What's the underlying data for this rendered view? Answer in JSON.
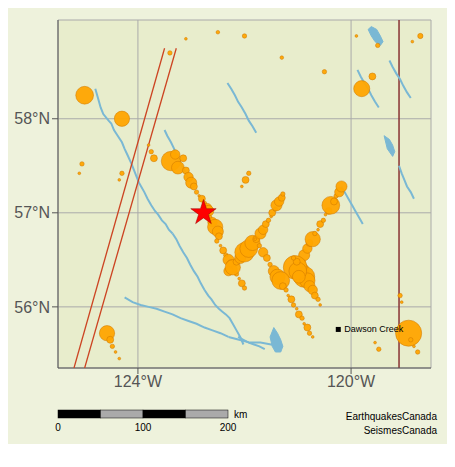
{
  "chart_data": {
    "type": "scatter",
    "xlim": [
      -125.5,
      -118.5
    ],
    "ylim": [
      55.35,
      59.05
    ],
    "xticks": [
      {
        "value": -124,
        "label": "124°W"
      },
      {
        "value": -120,
        "label": "120°W"
      }
    ],
    "yticks": [
      {
        "value": 56,
        "label": "56°N"
      },
      {
        "value": 57,
        "label": "57°N"
      },
      {
        "value": 58,
        "label": "58°N"
      }
    ],
    "grid": true,
    "background": "#eef2dc",
    "map_color": "#e8edcc",
    "grid_color": "#aaaaaa",
    "border_color": "#555555",
    "water_color": "#7ab8d4",
    "color": "#FFA500",
    "edge_color": "#cc7700",
    "earthquakes": [
      {
        "lon": -125.0,
        "lat": 58.25,
        "mag": 3.8
      },
      {
        "lon": -124.3,
        "lat": 58.0,
        "mag": 3.5
      },
      {
        "lon": -123.4,
        "lat": 58.7,
        "mag": 2.2
      },
      {
        "lon": -123.1,
        "lat": 58.85,
        "mag": 2.0
      },
      {
        "lon": -122.5,
        "lat": 58.92,
        "mag": 2.1
      },
      {
        "lon": -122.0,
        "lat": 58.88,
        "mag": 2.2
      },
      {
        "lon": -121.3,
        "lat": 58.65,
        "mag": 2.1
      },
      {
        "lon": -120.5,
        "lat": 58.5,
        "mag": 2.2
      },
      {
        "lon": -119.9,
        "lat": 58.88,
        "mag": 2.0
      },
      {
        "lon": -119.5,
        "lat": 58.78,
        "mag": 2.2
      },
      {
        "lon": -118.85,
        "lat": 58.82,
        "mag": 2.0
      },
      {
        "lon": -118.7,
        "lat": 58.88,
        "mag": 2.3
      },
      {
        "lon": -119.8,
        "lat": 58.32,
        "mag": 3.6
      },
      {
        "lon": -119.6,
        "lat": 58.45,
        "mag": 2.5
      },
      {
        "lon": -123.38,
        "lat": 57.55,
        "mag": 4.0
      },
      {
        "lon": -123.25,
        "lat": 57.48,
        "mag": 3.2
      },
      {
        "lon": -123.3,
        "lat": 57.62,
        "mag": 2.8
      },
      {
        "lon": -123.15,
        "lat": 57.58,
        "mag": 2.5
      },
      {
        "lon": -123.1,
        "lat": 57.45,
        "mag": 2.5
      },
      {
        "lon": -123.05,
        "lat": 57.38,
        "mag": 2.8
      },
      {
        "lon": -123.0,
        "lat": 57.32,
        "mag": 3.0
      },
      {
        "lon": -122.95,
        "lat": 57.28,
        "mag": 2.5
      },
      {
        "lon": -122.9,
        "lat": 57.22,
        "mag": 2.2
      },
      {
        "lon": -122.85,
        "lat": 57.18,
        "mag": 2.0
      },
      {
        "lon": -122.8,
        "lat": 57.15,
        "mag": 2.5
      },
      {
        "lon": -122.75,
        "lat": 57.1,
        "mag": 2.2
      },
      {
        "lon": -122.7,
        "lat": 57.05,
        "mag": 2.8
      },
      {
        "lon": -122.68,
        "lat": 57.02,
        "mag": 3.0
      },
      {
        "lon": -122.72,
        "lat": 56.98,
        "mag": 2.5
      },
      {
        "lon": -122.65,
        "lat": 56.95,
        "mag": 2.2
      },
      {
        "lon": -122.6,
        "lat": 56.9,
        "mag": 2.8
      },
      {
        "lon": -122.55,
        "lat": 56.85,
        "mag": 3.5
      },
      {
        "lon": -122.5,
        "lat": 56.8,
        "mag": 3.0
      },
      {
        "lon": -122.48,
        "lat": 56.75,
        "mag": 2.5
      },
      {
        "lon": -122.52,
        "lat": 56.7,
        "mag": 2.2
      },
      {
        "lon": -122.45,
        "lat": 56.65,
        "mag": 2.0
      },
      {
        "lon": -122.4,
        "lat": 56.6,
        "mag": 2.5
      },
      {
        "lon": -122.35,
        "lat": 56.55,
        "mag": 2.2
      },
      {
        "lon": -122.3,
        "lat": 56.5,
        "mag": 3.0
      },
      {
        "lon": -122.25,
        "lat": 56.45,
        "mag": 2.8
      },
      {
        "lon": -122.2,
        "lat": 56.4,
        "mag": 2.5
      },
      {
        "lon": -122.15,
        "lat": 56.35,
        "mag": 2.2
      },
      {
        "lon": -122.1,
        "lat": 56.3,
        "mag": 2.0
      },
      {
        "lon": -122.05,
        "lat": 56.25,
        "mag": 2.5
      },
      {
        "lon": -122.0,
        "lat": 56.2,
        "mag": 2.2
      },
      {
        "lon": -122.3,
        "lat": 56.38,
        "mag": 2.8
      },
      {
        "lon": -122.22,
        "lat": 56.42,
        "mag": 3.5
      },
      {
        "lon": -122.15,
        "lat": 56.48,
        "mag": 2.5
      },
      {
        "lon": -122.08,
        "lat": 56.52,
        "mag": 3.0
      },
      {
        "lon": -122.0,
        "lat": 56.58,
        "mag": 4.0
      },
      {
        "lon": -121.92,
        "lat": 56.62,
        "mag": 3.8
      },
      {
        "lon": -121.85,
        "lat": 56.68,
        "mag": 3.5
      },
      {
        "lon": -121.78,
        "lat": 56.72,
        "mag": 2.5
      },
      {
        "lon": -121.7,
        "lat": 56.78,
        "mag": 3.0
      },
      {
        "lon": -121.65,
        "lat": 56.82,
        "mag": 2.8
      },
      {
        "lon": -121.6,
        "lat": 56.88,
        "mag": 2.5
      },
      {
        "lon": -121.55,
        "lat": 56.92,
        "mag": 2.2
      },
      {
        "lon": -121.5,
        "lat": 56.96,
        "mag": 2.0
      },
      {
        "lon": -121.48,
        "lat": 57.0,
        "mag": 2.5
      },
      {
        "lon": -121.42,
        "lat": 57.04,
        "mag": 2.2
      },
      {
        "lon": -121.4,
        "lat": 57.08,
        "mag": 3.0
      },
      {
        "lon": -121.35,
        "lat": 57.12,
        "mag": 2.8
      },
      {
        "lon": -121.3,
        "lat": 57.16,
        "mag": 2.5
      },
      {
        "lon": -121.28,
        "lat": 57.2,
        "mag": 2.2
      },
      {
        "lon": -120.95,
        "lat": 56.38,
        "mag": 3.8
      },
      {
        "lon": -120.88,
        "lat": 56.32,
        "mag": 4.2
      },
      {
        "lon": -120.82,
        "lat": 56.28,
        "mag": 3.5
      },
      {
        "lon": -120.78,
        "lat": 56.22,
        "mag": 3.0
      },
      {
        "lon": -120.72,
        "lat": 56.18,
        "mag": 2.8
      },
      {
        "lon": -120.68,
        "lat": 56.12,
        "mag": 2.5
      },
      {
        "lon": -120.62,
        "lat": 56.08,
        "mag": 2.2
      },
      {
        "lon": -120.58,
        "lat": 56.02,
        "mag": 2.0
      },
      {
        "lon": -120.92,
        "lat": 56.48,
        "mag": 2.5
      },
      {
        "lon": -120.88,
        "lat": 56.55,
        "mag": 3.0
      },
      {
        "lon": -120.82,
        "lat": 56.62,
        "mag": 2.8
      },
      {
        "lon": -120.78,
        "lat": 56.68,
        "mag": 2.5
      },
      {
        "lon": -120.72,
        "lat": 56.72,
        "mag": 3.5
      },
      {
        "lon": -120.68,
        "lat": 56.78,
        "mag": 2.2
      },
      {
        "lon": -120.62,
        "lat": 56.82,
        "mag": 2.0
      },
      {
        "lon": -120.58,
        "lat": 56.88,
        "mag": 2.5
      },
      {
        "lon": -120.52,
        "lat": 56.92,
        "mag": 2.2
      },
      {
        "lon": -120.48,
        "lat": 56.98,
        "mag": 2.0
      },
      {
        "lon": -120.42,
        "lat": 57.02,
        "mag": 2.5
      },
      {
        "lon": -120.38,
        "lat": 57.08,
        "mag": 3.8
      },
      {
        "lon": -120.32,
        "lat": 57.12,
        "mag": 2.5
      },
      {
        "lon": -120.28,
        "lat": 57.18,
        "mag": 2.2
      },
      {
        "lon": -120.22,
        "lat": 57.22,
        "mag": 2.8
      },
      {
        "lon": -120.18,
        "lat": 57.28,
        "mag": 3.0
      },
      {
        "lon": -121.05,
        "lat": 56.42,
        "mag": 4.5
      },
      {
        "lon": -121.0,
        "lat": 56.38,
        "mag": 3.8
      },
      {
        "lon": -120.98,
        "lat": 56.32,
        "mag": 3.2
      },
      {
        "lon": -121.02,
        "lat": 56.48,
        "mag": 2.5
      },
      {
        "lon": -121.08,
        "lat": 56.52,
        "mag": 2.2
      },
      {
        "lon": -124.35,
        "lat": 57.35,
        "mag": 2.0
      },
      {
        "lon": -124.3,
        "lat": 57.42,
        "mag": 2.2
      },
      {
        "lon": -123.8,
        "lat": 57.72,
        "mag": 2.0
      },
      {
        "lon": -123.75,
        "lat": 57.65,
        "mag": 2.2
      },
      {
        "lon": -123.7,
        "lat": 57.58,
        "mag": 2.5
      },
      {
        "lon": -121.8,
        "lat": 56.72,
        "mag": 2.0
      },
      {
        "lon": -121.72,
        "lat": 56.65,
        "mag": 2.2
      },
      {
        "lon": -121.65,
        "lat": 56.58,
        "mag": 2.8
      },
      {
        "lon": -121.58,
        "lat": 56.52,
        "mag": 2.5
      },
      {
        "lon": -121.52,
        "lat": 56.45,
        "mag": 2.2
      },
      {
        "lon": -121.45,
        "lat": 56.38,
        "mag": 3.0
      },
      {
        "lon": -121.38,
        "lat": 56.32,
        "mag": 3.5
      },
      {
        "lon": -121.32,
        "lat": 56.28,
        "mag": 3.8
      },
      {
        "lon": -121.28,
        "lat": 56.22,
        "mag": 2.5
      },
      {
        "lon": -121.22,
        "lat": 56.18,
        "mag": 2.2
      },
      {
        "lon": -121.18,
        "lat": 56.12,
        "mag": 2.0
      },
      {
        "lon": -121.12,
        "lat": 56.08,
        "mag": 2.5
      },
      {
        "lon": -121.08,
        "lat": 56.02,
        "mag": 2.2
      },
      {
        "lon": -121.02,
        "lat": 55.98,
        "mag": 2.0
      },
      {
        "lon": -120.98,
        "lat": 55.92,
        "mag": 2.5
      },
      {
        "lon": -120.92,
        "lat": 55.88,
        "mag": 2.2
      },
      {
        "lon": -120.88,
        "lat": 55.82,
        "mag": 2.0
      },
      {
        "lon": -120.82,
        "lat": 55.78,
        "mag": 2.5
      },
      {
        "lon": -120.78,
        "lat": 55.72,
        "mag": 2.2
      },
      {
        "lon": -120.72,
        "lat": 55.68,
        "mag": 2.0
      },
      {
        "lon": -124.58,
        "lat": 55.72,
        "mag": 3.5
      },
      {
        "lon": -124.52,
        "lat": 55.65,
        "mag": 2.5
      },
      {
        "lon": -124.48,
        "lat": 55.58,
        "mag": 2.2
      },
      {
        "lon": -124.42,
        "lat": 55.52,
        "mag": 2.0
      },
      {
        "lon": -124.35,
        "lat": 55.45,
        "mag": 2.0
      },
      {
        "lon": -125.05,
        "lat": 57.52,
        "mag": 2.2
      },
      {
        "lon": -125.1,
        "lat": 57.42,
        "mag": 2.0
      },
      {
        "lon": -122.05,
        "lat": 57.28,
        "mag": 2.0
      },
      {
        "lon": -121.98,
        "lat": 57.35,
        "mag": 2.5
      },
      {
        "lon": -121.92,
        "lat": 57.42,
        "mag": 2.2
      },
      {
        "lon": -119.05,
        "lat": 56.05,
        "mag": 2.0
      },
      {
        "lon": -119.08,
        "lat": 56.12,
        "mag": 2.2
      },
      {
        "lon": -118.92,
        "lat": 55.72,
        "mag": 4.8
      },
      {
        "lon": -118.88,
        "lat": 55.65,
        "mag": 2.2
      },
      {
        "lon": -118.82,
        "lat": 55.58,
        "mag": 2.0
      },
      {
        "lon": -118.75,
        "lat": 55.52,
        "mag": 2.2
      },
      {
        "lon": -119.55,
        "lat": 55.62,
        "mag": 2.0
      },
      {
        "lon": -119.48,
        "lat": 55.55,
        "mag": 2.2
      }
    ],
    "rivers": [
      {
        "x": [
          -124.8,
          -124.75,
          -124.7,
          -124.65,
          -124.55,
          -124.5,
          -124.45,
          -124.38,
          -124.3,
          -124.25,
          -124.2,
          -124.12
        ],
        "y": [
          58.32,
          58.22,
          58.12,
          58.05,
          57.98,
          57.95,
          57.88,
          57.82,
          57.75,
          57.68,
          57.62,
          57.52
        ]
      },
      {
        "x": [
          -124.12,
          -124.05,
          -123.98,
          -123.88,
          -123.82,
          -123.75,
          -123.68,
          -123.62,
          -123.55,
          -123.48,
          -123.42,
          -123.35
        ],
        "y": [
          57.52,
          57.42,
          57.32,
          57.22,
          57.15,
          57.08,
          57.02,
          56.98,
          56.92,
          56.88,
          56.82,
          56.78
        ]
      },
      {
        "x": [
          -123.35,
          -123.28,
          -123.22,
          -123.15,
          -123.08,
          -123.02,
          -122.95,
          -122.88,
          -122.82,
          -122.75
        ],
        "y": [
          56.78,
          56.72,
          56.65,
          56.58,
          56.52,
          56.45,
          56.38,
          56.32,
          56.25,
          56.18
        ]
      },
      {
        "x": [
          -122.75,
          -122.68,
          -122.62,
          -122.55,
          -122.48,
          -122.42,
          -122.35,
          -122.28,
          -122.22,
          -122.15,
          -122.08,
          -122.02
        ],
        "y": [
          56.18,
          56.12,
          56.08,
          56.02,
          55.98,
          55.95,
          55.92,
          55.88,
          55.82,
          55.75,
          55.68,
          55.6
        ]
      },
      {
        "x": [
          -124.25,
          -124.1,
          -123.95,
          -123.8,
          -123.65,
          -123.5,
          -123.35,
          -123.2,
          -123.05,
          -122.9,
          -122.75,
          -122.6,
          -122.45,
          -122.3
        ],
        "y": [
          56.1,
          56.05,
          56.02,
          56.0,
          55.98,
          55.95,
          55.92,
          55.88,
          55.85,
          55.82,
          55.78,
          55.75,
          55.72,
          55.68
        ]
      },
      {
        "x": [
          -122.3,
          -122.1,
          -121.9,
          -121.7,
          -121.5,
          -121.3
        ],
        "y": [
          55.68,
          55.65,
          55.62,
          55.62,
          55.6,
          55.58
        ]
      },
      {
        "x": [
          -123.5,
          -123.45,
          -123.38,
          -123.32,
          -123.28,
          -123.22,
          -123.18,
          -123.1,
          -123.05
        ],
        "y": [
          57.88,
          57.82,
          57.75,
          57.68,
          57.62,
          57.55,
          57.5,
          57.42,
          57.35
        ]
      },
      {
        "x": [
          -122.32,
          -122.25,
          -122.18,
          -122.12,
          -122.05,
          -121.98,
          -121.92,
          -121.85,
          -121.78
        ],
        "y": [
          58.38,
          58.32,
          58.25,
          58.18,
          58.12,
          58.05,
          57.98,
          57.92,
          57.85
        ]
      },
      {
        "x": [
          -120.18,
          -120.12,
          -120.05,
          -119.98,
          -119.92,
          -119.85,
          -119.78
        ],
        "y": [
          57.28,
          57.22,
          57.15,
          57.08,
          57.02,
          56.95,
          56.88
        ]
      },
      {
        "x": [
          -119.88,
          -119.82,
          -119.75,
          -119.68,
          -119.62,
          -119.55,
          -119.48
        ],
        "y": [
          58.52,
          58.45,
          58.38,
          58.32,
          58.25,
          58.18,
          58.12
        ]
      },
      {
        "x": [
          -119.28,
          -119.22,
          -119.15,
          -119.08,
          -119.02,
          -118.95,
          -118.88
        ],
        "y": [
          58.62,
          58.55,
          58.48,
          58.42,
          58.35,
          58.28,
          58.22
        ]
      },
      {
        "x": [
          -119.1,
          -119.05,
          -119.0,
          -118.95,
          -118.88,
          -118.82
        ],
        "y": [
          57.5,
          57.42,
          57.35,
          57.28,
          57.22,
          57.15
        ]
      },
      {
        "x": [
          -122.12,
          -122.02,
          -121.92,
          -121.82,
          -121.72,
          -121.62
        ],
        "y": [
          55.68,
          55.65,
          55.62,
          55.6,
          55.58,
          55.55
        ]
      }
    ],
    "lakes": [
      {
        "x": [
          -119.62,
          -119.52,
          -119.45,
          -119.4,
          -119.45,
          -119.55,
          -119.62,
          -119.68,
          -119.62
        ],
        "y": [
          58.98,
          58.95,
          58.88,
          58.82,
          58.78,
          58.82,
          58.88,
          58.95,
          58.98
        ]
      },
      {
        "x": [
          -119.38,
          -119.28,
          -119.22,
          -119.18,
          -119.22,
          -119.32,
          -119.38
        ],
        "y": [
          57.82,
          57.78,
          57.72,
          57.65,
          57.6,
          57.68,
          57.82
        ]
      },
      {
        "x": [
          -121.45,
          -121.38,
          -121.32,
          -121.28,
          -121.32,
          -121.42,
          -121.48,
          -121.52,
          -121.45
        ],
        "y": [
          55.78,
          55.72,
          55.65,
          55.58,
          55.52,
          55.52,
          55.58,
          55.68,
          55.78
        ]
      }
    ],
    "roads": {
      "color": "#cc4422",
      "lines": [
        {
          "x": [
            -125.2,
            -123.5
          ],
          "y": [
            55.35,
            58.75
          ]
        },
        {
          "x": [
            -125.0,
            -123.28
          ],
          "y": [
            55.35,
            58.75
          ]
        }
      ]
    },
    "border_line": {
      "x": -119.1,
      "color": "#883333"
    },
    "star": {
      "x": -122.77,
      "y": 57.0,
      "color": "red",
      "edge_color": "#990000"
    },
    "town": {
      "x": -120.24,
      "y": 55.76,
      "label": "Dawson Creek",
      "color": "black"
    },
    "scalebar": {
      "segments": [
        0,
        50,
        100,
        150,
        200
      ],
      "colors": [
        "black",
        "#aaaaaa",
        "black",
        "#aaaaaa"
      ],
      "ticks": [
        0,
        100,
        200
      ],
      "label": "km"
    },
    "credits": [
      "EarthquakesCanada",
      "SeismesCanada"
    ]
  }
}
